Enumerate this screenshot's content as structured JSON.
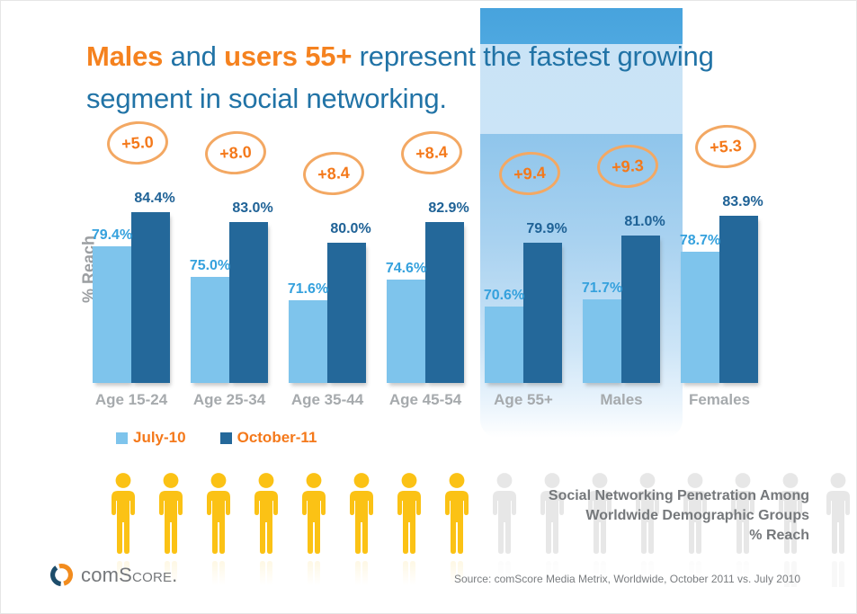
{
  "title": {
    "segments": [
      {
        "text": "Males",
        "emphasis": true
      },
      {
        "text": " and ",
        "emphasis": false
      },
      {
        "text": "users 55+",
        "emphasis": true
      },
      {
        "text": " represent the fastest growing segment in social networking.",
        "emphasis": false
      }
    ]
  },
  "legend": {
    "items": [
      {
        "label": "July-10",
        "color": "#7ec4ec"
      },
      {
        "label": "October-11",
        "color": "#24689a"
      }
    ]
  },
  "chart_data": {
    "type": "bar",
    "title": "Males and users 55+ represent the fastest growing segment in social networking.",
    "ylabel": "% Reach",
    "categories": [
      "Age 15-24",
      "Age 25-34",
      "Age 35-44",
      "Age 45-54",
      "Age 55+",
      "Males",
      "Females"
    ],
    "series": [
      {
        "name": "July-10",
        "color": "#7ec4ec",
        "label_color": "#35a1dd",
        "values": [
          79.4,
          75.0,
          71.6,
          74.6,
          70.6,
          71.7,
          78.7
        ]
      },
      {
        "name": "October-11",
        "color": "#24689a",
        "label_color": "#1f6296",
        "values": [
          84.4,
          83.0,
          80.0,
          82.9,
          79.9,
          81.0,
          83.9
        ]
      }
    ],
    "deltas": [
      "+5.0",
      "+8.0",
      "+8.4",
      "+8.4",
      "+9.4",
      "+9.3",
      "+5.3"
    ],
    "value_suffix": "%",
    "ylim": [
      59.5,
      86.5
    ],
    "grid": false,
    "legend_position": "bottom-left",
    "highlighted_categories": [
      "Age 55+",
      "Males"
    ]
  },
  "caption": {
    "line1": "Social Networking Penetration Among",
    "line2": "Worldwide Demographic Groups",
    "line3": "% Reach"
  },
  "people": {
    "yellow_count": 8,
    "gray_count": 8,
    "yellow_color": "#fbc215",
    "gray_color": "#e7e7e7"
  },
  "footer": {
    "brand_com": "com",
    "brand_score": "Score.",
    "source": "Source: comScore Media Metrix, Worldwide, October 2011 vs. July 2010"
  },
  "colors": {
    "title_blue": "#2173a6",
    "accent_orange": "#f5821f",
    "badge_stroke": "#f3a863",
    "category_gray": "#a6aaad",
    "caption_gray": "#75787b",
    "band_top": "#47a3dd",
    "band_light": "#c9e3f6"
  }
}
